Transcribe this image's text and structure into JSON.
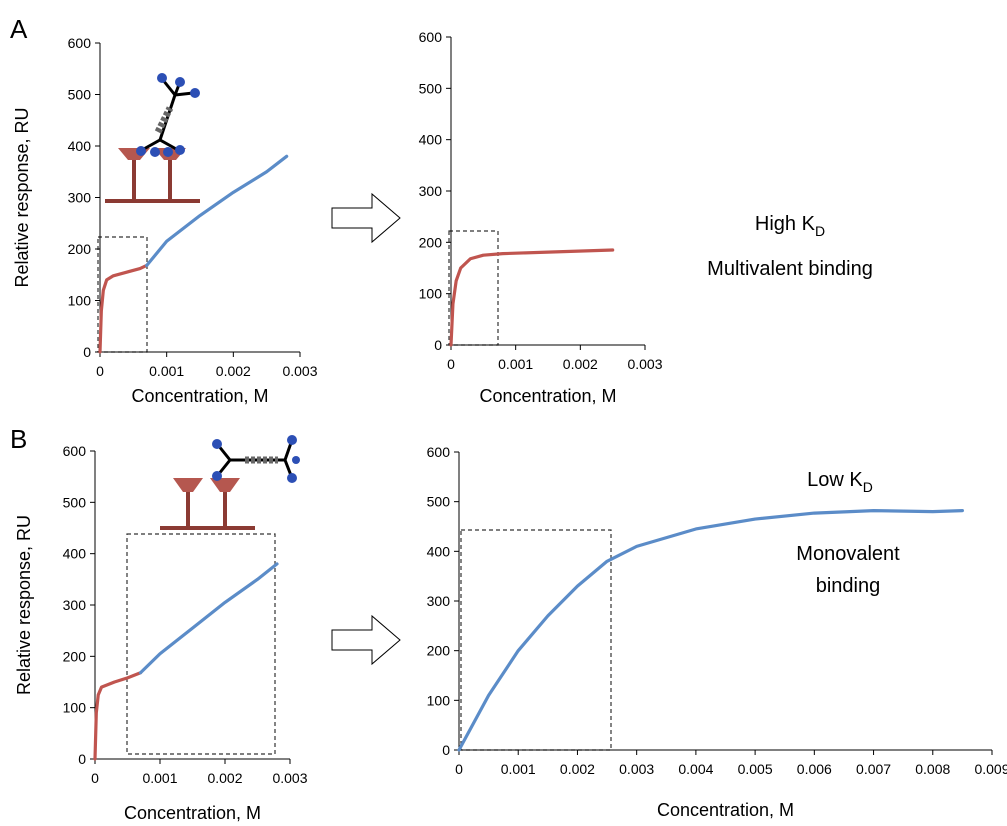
{
  "panels": [
    "A",
    "B"
  ],
  "annotations": [
    {
      "text": "High K",
      "subscript": "D"
    },
    {
      "text": "Multivalent binding"
    },
    {
      "text": "Low K",
      "subscript": "D"
    },
    {
      "text": "Monovalent"
    },
    {
      "text": "binding"
    }
  ],
  "chart_data": [
    {
      "type": "line",
      "y_label": "Relative response, RU",
      "x_label": "Concentration, M",
      "xlim": [
        0,
        0.003
      ],
      "xticks": [
        0,
        0.001,
        0.002,
        0.003
      ],
      "ylim": [
        0,
        600
      ],
      "yticks": [
        0,
        100,
        200,
        300,
        400,
        500,
        600
      ],
      "series": [
        {
          "color": "#c0554f",
          "x": [
            0,
            2e-05,
            5e-05,
            0.0001,
            0.0002,
            0.0004,
            0.0006,
            0.0007
          ],
          "values": [
            0,
            80,
            120,
            140,
            148,
            155,
            162,
            168
          ]
        },
        {
          "color": "#5b8cc8",
          "x": [
            0.0007,
            0.001,
            0.0015,
            0.002,
            0.0025,
            0.0028
          ],
          "values": [
            168,
            215,
            265,
            310,
            350,
            380
          ]
        }
      ]
    },
    {
      "type": "line",
      "x_label": "Concentration, M",
      "xlim": [
        0,
        0.003
      ],
      "xticks": [
        0,
        0.001,
        0.002,
        0.003
      ],
      "ylim": [
        0,
        600
      ],
      "yticks": [
        0,
        100,
        200,
        300,
        400,
        500,
        600
      ],
      "series": [
        {
          "color": "#c0554f",
          "x": [
            0,
            3e-05,
            8e-05,
            0.00015,
            0.0003,
            0.0005,
            0.0008,
            0.0015,
            0.0025
          ],
          "values": [
            0,
            80,
            125,
            150,
            168,
            175,
            178,
            181,
            185
          ]
        }
      ]
    },
    {
      "type": "line",
      "y_label": "Relative response, RU",
      "x_label": "Concentration, M",
      "xlim": [
        0,
        0.003
      ],
      "xticks": [
        0,
        0.001,
        0.002,
        0.003
      ],
      "ylim": [
        0,
        600
      ],
      "yticks": [
        0,
        100,
        200,
        300,
        400,
        500,
        600
      ],
      "series": [
        {
          "color": "#c0554f",
          "x": [
            0,
            2e-05,
            5e-05,
            0.0001,
            0.0003,
            0.0005,
            0.0007
          ],
          "values": [
            0,
            90,
            125,
            140,
            150,
            158,
            168
          ]
        },
        {
          "color": "#5b8cc8",
          "x": [
            0.0007,
            0.001,
            0.0015,
            0.002,
            0.0025,
            0.0028
          ],
          "values": [
            168,
            205,
            255,
            305,
            350,
            380
          ]
        }
      ]
    },
    {
      "type": "line",
      "x_label": "Concentration, M",
      "xlim": [
        0,
        0.009
      ],
      "xticks": [
        0,
        0.001,
        0.002,
        0.003,
        0.004,
        0.005,
        0.006,
        0.007,
        0.008,
        0.009
      ],
      "ylim": [
        0,
        600
      ],
      "yticks": [
        0,
        100,
        200,
        300,
        400,
        500,
        600
      ],
      "series": [
        {
          "color": "#5b8cc8",
          "x": [
            0,
            0.0005,
            0.001,
            0.0015,
            0.002,
            0.0025,
            0.003,
            0.004,
            0.005,
            0.006,
            0.007,
            0.008,
            0.0085
          ],
          "values": [
            0,
            110,
            200,
            270,
            330,
            380,
            410,
            445,
            465,
            477,
            482,
            480,
            482
          ]
        }
      ]
    }
  ]
}
